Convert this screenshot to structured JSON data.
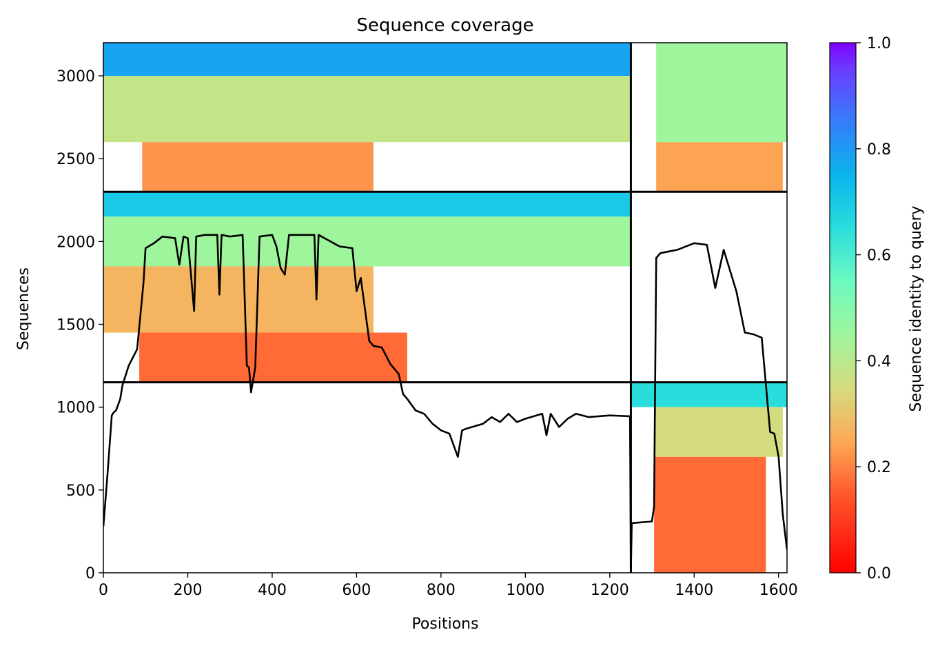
{
  "chart_data": {
    "type": "heatmap",
    "title": "Sequence coverage",
    "xlabel": "Positions",
    "ylabel": "Sequences",
    "xlim": [
      0,
      1620
    ],
    "ylim": [
      0,
      3200
    ],
    "xticks": [
      0,
      200,
      400,
      600,
      800,
      1000,
      1200,
      1400,
      1600
    ],
    "yticks": [
      0,
      500,
      1000,
      1500,
      2000,
      2500,
      3000
    ],
    "grid": false,
    "colorbar": {
      "label": "Sequence identity to query",
      "colormap": "rainbow_r",
      "min": 0.0,
      "max": 1.0,
      "ticks": [
        0.0,
        0.2,
        0.4,
        0.6,
        0.8,
        1.0
      ]
    },
    "block_boundaries": {
      "positions": [
        1250
      ],
      "sequences": [
        1150,
        2300
      ]
    },
    "coverage_bands": [
      {
        "x": [
          0,
          1250
        ],
        "y": [
          3000,
          3200
        ],
        "identity": 0.78
      },
      {
        "x": [
          0,
          1250
        ],
        "y": [
          2600,
          3000
        ],
        "identity": 0.38
      },
      {
        "x": [
          92,
          640
        ],
        "y": [
          2300,
          2600
        ],
        "identity": 0.22
      },
      {
        "x": [
          1310,
          1610
        ],
        "y": [
          2300,
          2600
        ],
        "identity": 0.24
      },
      {
        "x": [
          1310,
          1620
        ],
        "y": [
          2600,
          3200
        ],
        "identity": 0.45
      },
      {
        "x": [
          0,
          1250
        ],
        "y": [
          2150,
          2300
        ],
        "identity": 0.7
      },
      {
        "x": [
          0,
          1250
        ],
        "y": [
          1850,
          2150
        ],
        "identity": 0.45
      },
      {
        "x": [
          0,
          640
        ],
        "y": [
          1450,
          1850
        ],
        "identity": 0.27
      },
      {
        "x": [
          85,
          720
        ],
        "y": [
          1150,
          1450
        ],
        "identity": 0.17
      },
      {
        "x": [
          1250,
          1620
        ],
        "y": [
          1000,
          1150
        ],
        "identity": 0.65
      },
      {
        "x": [
          1305,
          1610
        ],
        "y": [
          700,
          1000
        ],
        "identity": 0.35
      },
      {
        "x": [
          1305,
          1570
        ],
        "y": [
          0,
          700
        ],
        "identity": 0.17
      }
    ],
    "series": [
      {
        "type": "line",
        "color": "#000000",
        "x": [
          0,
          10,
          20,
          25,
          30,
          40,
          45,
          60,
          80,
          95,
          100,
          120,
          140,
          170,
          180,
          190,
          200,
          215,
          220,
          240,
          270,
          275,
          280,
          300,
          330,
          340,
          345,
          350,
          360,
          370,
          400,
          410,
          420,
          430,
          440,
          450,
          470,
          500,
          505,
          510,
          560,
          590,
          600,
          610,
          630,
          640,
          660,
          680,
          700,
          710,
          720,
          740,
          760,
          780,
          800,
          820,
          840,
          850,
          860,
          900,
          920,
          940,
          960,
          980,
          1000,
          1040,
          1050,
          1060,
          1080,
          1100,
          1120,
          1150,
          1200,
          1248,
          1250,
          1252,
          1300,
          1305,
          1310,
          1320,
          1340,
          1360,
          1400,
          1430,
          1450,
          1470,
          1500,
          1520,
          1540,
          1560,
          1580,
          1590,
          1600,
          1610,
          1620
        ],
        "y": [
          280,
          600,
          950,
          970,
          980,
          1050,
          1130,
          1250,
          1350,
          1750,
          1960,
          1990,
          2030,
          2020,
          1860,
          2030,
          2020,
          1580,
          2030,
          2040,
          2040,
          1680,
          2040,
          2030,
          2040,
          1250,
          1240,
          1090,
          1240,
          2030,
          2040,
          1970,
          1840,
          1800,
          2040,
          2040,
          2040,
          2040,
          1650,
          2040,
          1970,
          1960,
          1700,
          1780,
          1400,
          1370,
          1360,
          1260,
          1200,
          1080,
          1050,
          980,
          960,
          900,
          860,
          840,
          700,
          860,
          870,
          900,
          940,
          910,
          960,
          910,
          930,
          960,
          830,
          960,
          880,
          930,
          960,
          940,
          950,
          945,
          0,
          300,
          310,
          400,
          1900,
          1930,
          1940,
          1950,
          1990,
          1980,
          1720,
          1950,
          1700,
          1450,
          1440,
          1420,
          850,
          840,
          700,
          350,
          140
        ]
      }
    ]
  }
}
